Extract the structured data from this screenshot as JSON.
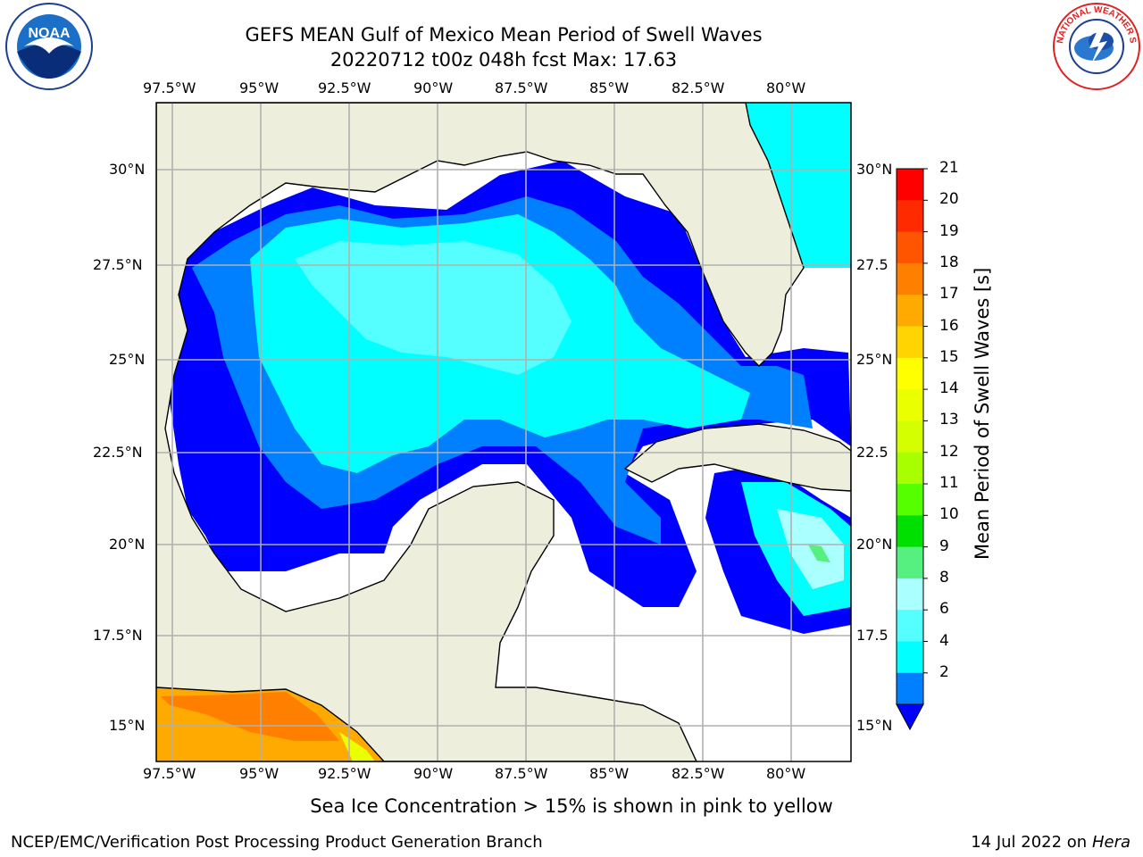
{
  "title": {
    "line1": "GEFS MEAN Gulf of Mexico Mean Period of Swell Waves",
    "line2": "20220712 t00z 048h fcst   Max: 17.63"
  },
  "subtitle": "Sea Ice Concentration > 15% is shown in pink to yellow",
  "footer": {
    "left": "NCEP/EMC/Verification Post Processing Product Generation Branch",
    "right_date": "14 Jul 2022 on ",
    "right_host": "Hera"
  },
  "logos": {
    "noaa": {
      "text": "NOAA",
      "icon": "noaa-logo-icon"
    },
    "nws": {
      "text": "NATIONAL WEATHER SERVICE",
      "icon": "nws-logo-icon"
    }
  },
  "map": {
    "lon_labels": [
      "97.5°W",
      "95°W",
      "92.5°W",
      "90°W",
      "87.5°W",
      "85°W",
      "82.5°W",
      "80°W"
    ],
    "lat_labels_left": [
      "30°N",
      "27.5°N",
      "25°N",
      "22.5°N",
      "20°N",
      "17.5°N",
      "15°N"
    ],
    "lat_labels_right": [
      "30°N",
      "27.5",
      "25°N",
      "22.5",
      "20°N",
      "17.5",
      "15°N"
    ],
    "land_color": "#eeeedd",
    "grid_color": "#b0b0b0"
  },
  "colorbar": {
    "title": "Mean Period of Swell Waves [s]",
    "ticks": [
      "21",
      "20",
      "19",
      "18",
      "17",
      "16",
      "15",
      "14",
      "13",
      "12",
      "11",
      "10",
      "9",
      "8",
      "6",
      "4",
      "2"
    ],
    "colors": [
      "#ff0000",
      "#ff2a00",
      "#ff5500",
      "#ff8000",
      "#ffaa00",
      "#ffd400",
      "#ffff00",
      "#eaff00",
      "#d4ff00",
      "#a8ff00",
      "#55ff00",
      "#00e000",
      "#55f080",
      "#aaffff",
      "#55ffff",
      "#00ffff",
      "#0080ff"
    ],
    "extend_color": "#0000ff"
  }
}
